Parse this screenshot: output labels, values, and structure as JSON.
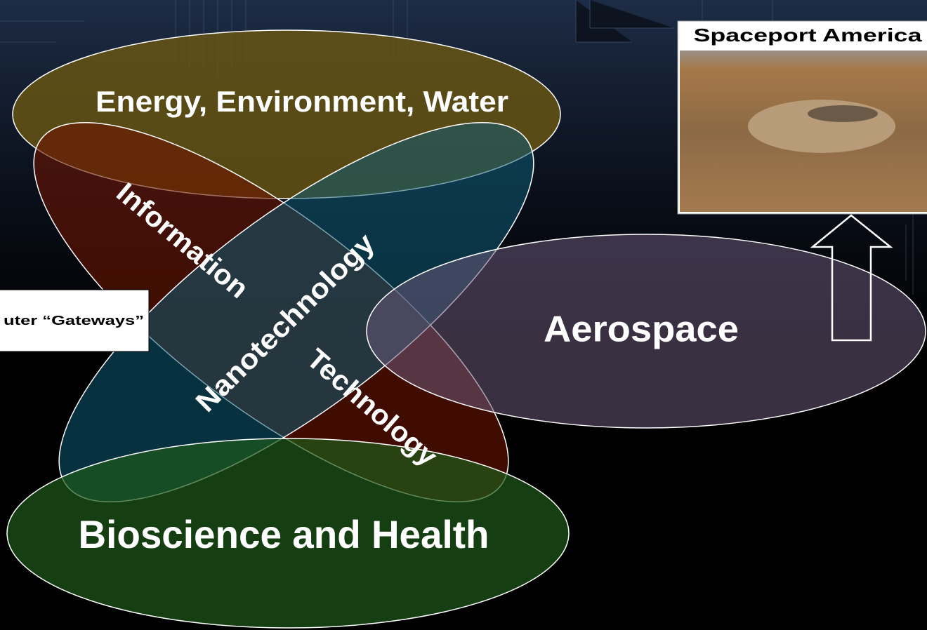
{
  "regions": {
    "energy": "Energy, Environment, Water",
    "information": "Information",
    "nanotechnology": "Nanotechnology",
    "technology": "Technology",
    "aerospace": "Aerospace",
    "bioscience": "Bioscience and Health"
  },
  "photo": {
    "caption": "Spaceport America"
  },
  "callout": {
    "label": "uter “Gateways”"
  }
}
